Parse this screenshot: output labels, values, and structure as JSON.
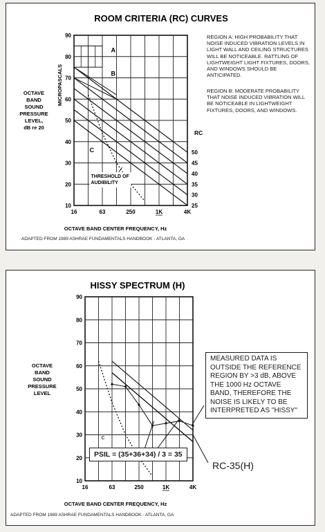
{
  "chart_data": [
    {
      "type": "line",
      "title": "ROOM CRITERIA (RC) CURVES",
      "ylabel": "OCTAVE BAND SOUND PRESSURE LEVEL, dB re 20 MICROPASCALS",
      "ylabel_lines": [
        "OCTAVE",
        "BAND",
        "SOUND",
        "PRESSURE",
        "LEVEL,",
        "dB re 20"
      ],
      "ylabel_side": "MICROPASCALS",
      "xlabel": "OCTAVE BAND CENTER FREQUENCY, Hz",
      "x_ticks": [
        "16",
        "63",
        "250",
        "1K",
        "4K"
      ],
      "y_ticks": [
        10,
        20,
        30,
        40,
        50,
        60,
        70,
        80,
        90
      ],
      "ylim": [
        10,
        90
      ],
      "x_octaves": [
        "16",
        "31.5",
        "63",
        "125",
        "250",
        "500",
        "1K",
        "2K",
        "4K"
      ],
      "rc_label": "RC",
      "series": [
        {
          "name": "50",
          "values": [
            75,
            70,
            65,
            60,
            55,
            50,
            45,
            40,
            35
          ]
        },
        {
          "name": "45",
          "values": [
            70,
            65,
            60,
            55,
            50,
            45,
            40,
            35,
            30
          ]
        },
        {
          "name": "40",
          "values": [
            65,
            60,
            55,
            50,
            45,
            40,
            35,
            30,
            25
          ]
        },
        {
          "name": "35",
          "values": [
            60,
            55,
            50,
            45,
            40,
            35,
            30,
            25,
            20
          ]
        },
        {
          "name": "30",
          "values": [
            55,
            50,
            45,
            40,
            35,
            30,
            25,
            20,
            15
          ]
        },
        {
          "name": "25",
          "values": [
            50,
            45,
            40,
            35,
            30,
            25,
            20,
            15,
            10
          ]
        }
      ],
      "threshold": {
        "label_lines": [
          "THRESHOLD OF",
          "AUDIBILITY"
        ],
        "values": [
          62,
          44,
          30,
          20,
          12
        ]
      },
      "regions": [
        "A",
        "B",
        "C"
      ],
      "notes": [
        {
          "text": "REGION A:  HIGH PROBABILITY THAT NOISE INDUCED VIBRATION LEVELS IN LIGHT WALL AND CEILING STRUCTURES WILL BE NOTICEABLE. RATTLING OF LIGHTWEIGHT LIGHT FIXTURES, DOORS, AND WINDOWS SHOULD BE ANTICIPATED."
        },
        {
          "text": "REGION B:  MODERATE PROBABILITY THAT NOISE INDUCED VIBRATION WILL BE NOTICEABLE IN LIGHTWEIGHT FIXTURES, DOORS, AND WINDOWS."
        }
      ],
      "footer": "ADAPTED FROM 1989 ASHRAE FUNDAMENTALS HANDBOOK - ATLANTA, GA"
    },
    {
      "type": "line",
      "title": "HISSY SPECTRUM (H)",
      "ylabel": "OCTAVE BAND SOUND PRESSURE LEVEL",
      "ylabel_lines": [
        "OCTAVE",
        "BAND",
        "SOUND",
        "PRESSURE",
        "LEVEL"
      ],
      "xlabel": "OCTAVE BAND CENTER FREQUENCY, Hz",
      "x_ticks": [
        "16",
        "63",
        "250",
        "1K",
        "4K"
      ],
      "y_ticks": [
        10,
        20,
        30,
        40,
        50,
        60,
        70,
        80,
        90
      ],
      "ylim": [
        10,
        90
      ],
      "x_octaves": [
        "16",
        "31.5",
        "63",
        "125",
        "250",
        "500",
        "1K",
        "2K",
        "4K"
      ],
      "series": [
        {
          "name": "",
          "values": [
            null,
            null,
            52,
            51,
            43,
            34,
            35,
            36,
            34
          ]
        },
        {
          "name": "",
          "values": [
            null,
            null,
            57,
            52,
            47,
            42,
            37,
            32,
            27
          ]
        },
        {
          "name": "",
          "values": [
            null,
            null,
            62,
            57,
            52,
            47,
            42,
            37,
            32
          ]
        }
      ],
      "threshold": {
        "values": [
          62,
          44,
          30,
          20,
          12
        ]
      },
      "region_label": "C",
      "callout": "MEASURED DATA  IS OUTSIDE THE REFERENCE REGION BY >3 dB, ABOVE THE 1000 Hz OCTAVE BAND, THEREFORE THE NOISE IS LIKELY TO BE INTERPRETED AS \"HISSY\"",
      "psil": "PSIL = (35+36+34) / 3 = 35",
      "rating": "RC-35(H)",
      "footer": "ADAPTED FROM 1989 ASHRAE FUNDAMENTALS HANDBOOK - ATLANTA, GA"
    }
  ]
}
